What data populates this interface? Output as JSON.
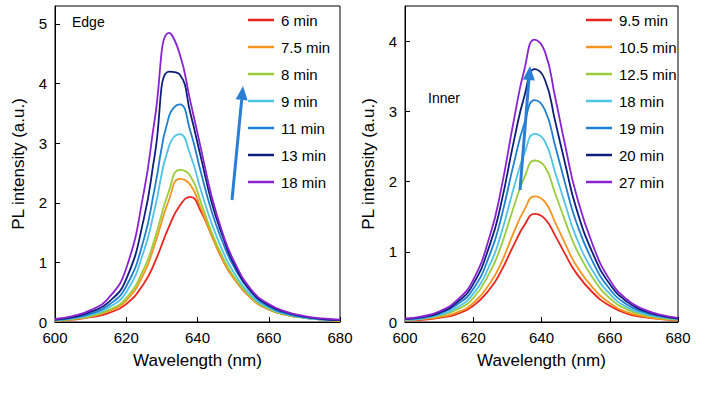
{
  "chart_data": [
    {
      "type": "line",
      "annotation": "Edge",
      "xlabel": "Wavelength (nm)",
      "ylabel": "PL intensity (a.u.)",
      "legend": "upper right",
      "xlim": [
        600,
        680
      ],
      "xticks": [
        600,
        620,
        640,
        660,
        680
      ],
      "ylim": [
        0,
        5.3
      ],
      "yticks": [
        0,
        1,
        2,
        3,
        4,
        5
      ],
      "x": [
        600,
        605,
        610,
        615,
        620,
        625,
        628,
        632,
        635,
        638,
        641,
        644,
        647,
        650,
        655,
        660,
        665,
        670,
        675,
        680
      ],
      "series": [
        {
          "name": "6 min",
          "color": "#e8251f",
          "values": [
            0.02,
            0.04,
            0.08,
            0.15,
            0.3,
            0.65,
            1.0,
            1.6,
            1.95,
            2.1,
            1.85,
            1.45,
            1.05,
            0.75,
            0.4,
            0.21,
            0.12,
            0.07,
            0.04,
            0.02
          ]
        },
        {
          "name": "7.5 min",
          "color": "#f7941d",
          "values": [
            0.02,
            0.05,
            0.09,
            0.18,
            0.36,
            0.82,
            1.3,
            2.05,
            2.4,
            2.3,
            1.9,
            1.45,
            1.05,
            0.75,
            0.4,
            0.21,
            0.12,
            0.07,
            0.04,
            0.02
          ]
        },
        {
          "name": "8 min",
          "color": "#9ccc3a",
          "values": [
            0.02,
            0.05,
            0.1,
            0.2,
            0.4,
            0.9,
            1.4,
            2.2,
            2.55,
            2.45,
            2.0,
            1.5,
            1.1,
            0.78,
            0.42,
            0.22,
            0.12,
            0.07,
            0.04,
            0.02
          ]
        },
        {
          "name": "9 min",
          "color": "#4fc3e8",
          "values": [
            0.03,
            0.06,
            0.12,
            0.24,
            0.5,
            1.2,
            1.9,
            2.95,
            3.15,
            2.8,
            2.2,
            1.65,
            1.2,
            0.85,
            0.45,
            0.24,
            0.13,
            0.07,
            0.04,
            0.03
          ]
        },
        {
          "name": "11 min",
          "color": "#1f7fd0",
          "values": [
            0.03,
            0.07,
            0.14,
            0.28,
            0.6,
            1.4,
            2.25,
            3.45,
            3.65,
            3.2,
            2.5,
            1.85,
            1.35,
            0.95,
            0.5,
            0.26,
            0.14,
            0.08,
            0.05,
            0.03
          ]
        },
        {
          "name": "13 min",
          "color": "#0d1f7a",
          "values": [
            0.04,
            0.08,
            0.17,
            0.33,
            0.72,
            1.75,
            2.8,
            4.2,
            4.15,
            3.5,
            2.75,
            2.0,
            1.45,
            1.0,
            0.52,
            0.28,
            0.16,
            0.09,
            0.05,
            0.03
          ]
        },
        {
          "name": "18 min",
          "color": "#8b22d1",
          "values": [
            0.05,
            0.1,
            0.2,
            0.4,
            0.9,
            2.2,
            3.4,
            4.85,
            4.5,
            3.7,
            2.9,
            2.1,
            1.5,
            1.05,
            0.55,
            0.3,
            0.17,
            0.1,
            0.06,
            0.04
          ]
        }
      ]
    },
    {
      "type": "line",
      "annotation": "Inner",
      "xlabel": "Wavelength (nm)",
      "ylabel": "PL intensity (a.u.)",
      "legend": "upper right",
      "xlim": [
        600,
        680
      ],
      "xticks": [
        600,
        620,
        640,
        660,
        680
      ],
      "ylim": [
        0,
        4.5
      ],
      "yticks": [
        0,
        1,
        2,
        3,
        4
      ],
      "x": [
        600,
        605,
        610,
        615,
        620,
        625,
        628,
        632,
        635,
        638,
        641,
        644,
        647,
        650,
        655,
        660,
        665,
        670,
        675,
        680
      ],
      "series": [
        {
          "name": "9.5 min",
          "color": "#e8251f",
          "values": [
            0.02,
            0.03,
            0.06,
            0.11,
            0.23,
            0.48,
            0.71,
            1.11,
            1.38,
            1.54,
            1.47,
            1.23,
            0.96,
            0.71,
            0.42,
            0.23,
            0.12,
            0.07,
            0.04,
            0.02
          ]
        },
        {
          "name": "10.5 min",
          "color": "#f7941d",
          "values": [
            0.02,
            0.04,
            0.07,
            0.13,
            0.27,
            0.56,
            0.82,
            1.29,
            1.6,
            1.79,
            1.71,
            1.42,
            1.11,
            0.82,
            0.49,
            0.27,
            0.14,
            0.08,
            0.04,
            0.03
          ]
        },
        {
          "name": "12.5 min",
          "color": "#9ccc3a",
          "values": [
            0.03,
            0.05,
            0.09,
            0.17,
            0.34,
            0.72,
            1.06,
            1.66,
            2.06,
            2.3,
            2.21,
            1.83,
            1.43,
            1.06,
            0.63,
            0.34,
            0.18,
            0.1,
            0.06,
            0.03
          ]
        },
        {
          "name": "18 min",
          "color": "#4fc3e8",
          "values": [
            0.03,
            0.05,
            0.1,
            0.2,
            0.4,
            0.83,
            1.23,
            1.93,
            2.4,
            2.68,
            2.57,
            2.13,
            1.67,
            1.23,
            0.73,
            0.4,
            0.21,
            0.12,
            0.07,
            0.04
          ]
        },
        {
          "name": "19 min",
          "color": "#1f7fd0",
          "values": [
            0.04,
            0.06,
            0.12,
            0.24,
            0.47,
            0.98,
            1.45,
            2.28,
            2.83,
            3.16,
            3.02,
            2.51,
            1.96,
            1.45,
            0.86,
            0.47,
            0.25,
            0.14,
            0.08,
            0.05
          ]
        },
        {
          "name": "20 min",
          "color": "#0d1f7a",
          "values": [
            0.04,
            0.07,
            0.13,
            0.27,
            0.54,
            1.12,
            1.65,
            2.6,
            3.22,
            3.6,
            3.45,
            2.86,
            2.24,
            1.65,
            0.98,
            0.54,
            0.29,
            0.16,
            0.09,
            0.05
          ]
        },
        {
          "name": "27 min",
          "color": "#8b22d1",
          "values": [
            0.05,
            0.08,
            0.15,
            0.3,
            0.6,
            1.25,
            1.85,
            2.9,
            3.6,
            4.02,
            3.85,
            3.2,
            2.5,
            1.85,
            1.1,
            0.6,
            0.32,
            0.18,
            0.1,
            0.06
          ]
        }
      ]
    }
  ]
}
